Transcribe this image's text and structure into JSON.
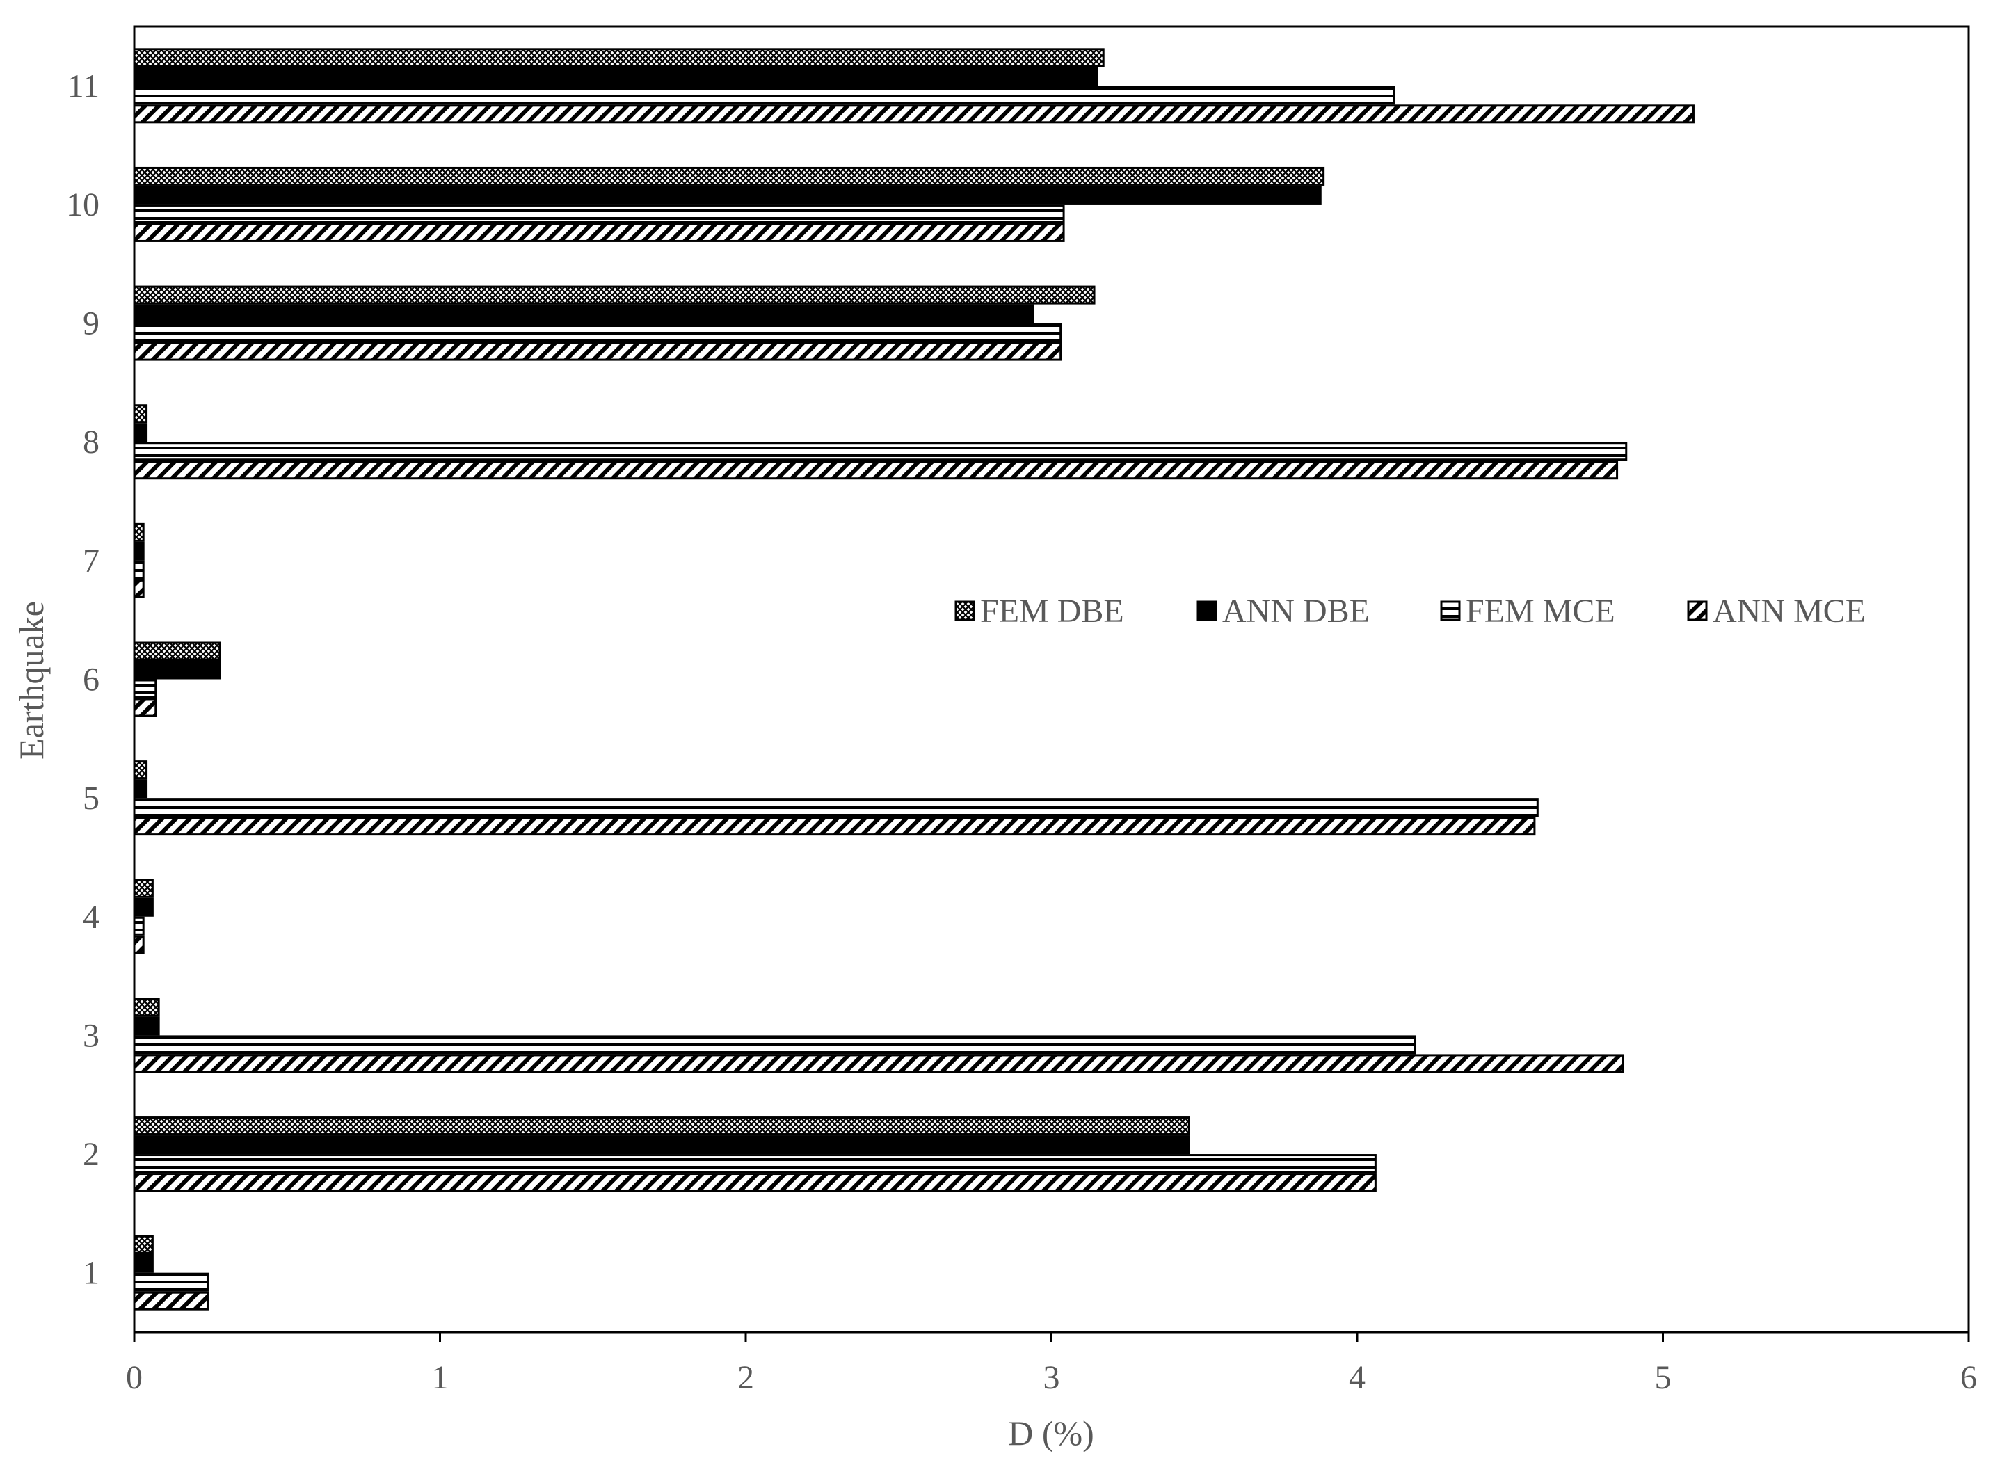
{
  "chart_data": {
    "type": "bar",
    "orientation": "horizontal",
    "categories": [
      "1",
      "2",
      "3",
      "4",
      "5",
      "6",
      "7",
      "8",
      "9",
      "10",
      "11"
    ],
    "series": [
      {
        "name": "FEM DBE",
        "pattern": "crosshatch",
        "values": [
          0.06,
          3.45,
          0.08,
          0.06,
          0.04,
          0.28,
          0.03,
          0.04,
          3.14,
          3.89,
          3.17
        ]
      },
      {
        "name": "ANN DBE",
        "pattern": "solid",
        "values": [
          0.06,
          3.45,
          0.08,
          0.06,
          0.04,
          0.28,
          0.03,
          0.04,
          2.94,
          3.88,
          3.15
        ]
      },
      {
        "name": "FEM MCE",
        "pattern": "horizontal-lines",
        "values": [
          0.24,
          4.06,
          4.19,
          0.03,
          4.59,
          0.07,
          0.03,
          4.88,
          3.03,
          3.04,
          4.12
        ]
      },
      {
        "name": "ANN MCE",
        "pattern": "diagonal-stripes",
        "values": [
          0.24,
          4.06,
          4.87,
          0.03,
          4.58,
          0.07,
          0.03,
          4.85,
          3.03,
          3.04,
          5.1
        ]
      }
    ],
    "xlabel": "D (%)",
    "ylabel": "Earthquake",
    "xlim": [
      0,
      6
    ],
    "xticks": [
      "0",
      "1",
      "2",
      "3",
      "4",
      "5",
      "6"
    ],
    "grid": false,
    "legend_position": "right-middle",
    "colors": {
      "axis": "#000000",
      "bar": "#000000",
      "text": "#595959",
      "background": "#ffffff"
    }
  }
}
